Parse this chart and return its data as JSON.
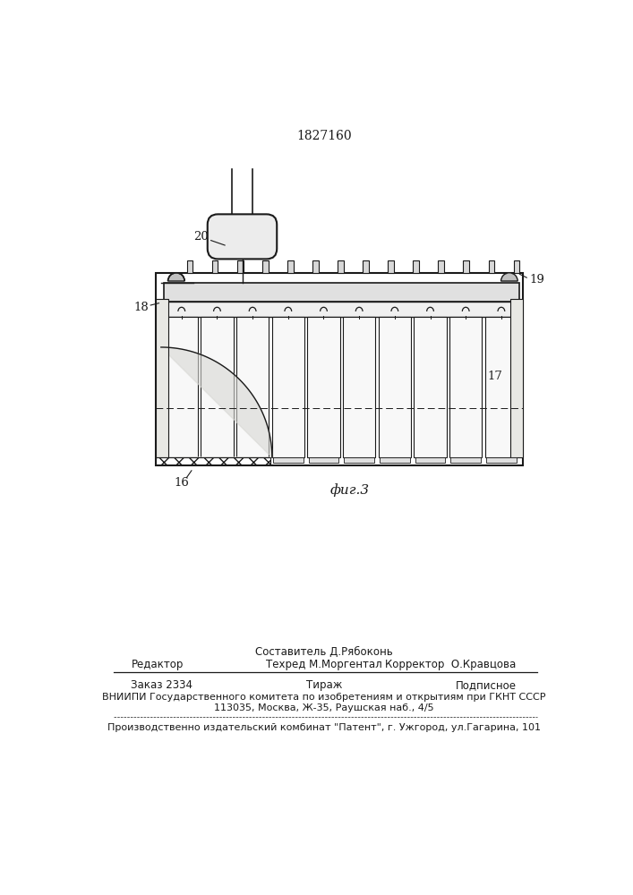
{
  "patent_number": "1827160",
  "figure_caption": "фиг.3",
  "bg_color": "#ffffff",
  "line_color": "#1a1a1a",
  "footer": {
    "sestavitel": "Составитель Д.Рябоконь",
    "redaktor": "Редактор",
    "tehred": "Техред М.Моргентал",
    "korrektor_label": "Корректор",
    "korrektor": "О.Кравцова",
    "zakaz": "Заказ 2334",
    "tirazh": "Тираж",
    "podpisnoe": "Подписное",
    "vniiipi1": "ВНИИПИ Государственного комитета по изобретениям и открытиям при ГКНТ СССР",
    "vniiipi2": "113035, Москва, Ж-35, Раушская наб., 4/5",
    "patent_line": "Производственно издательский комбинат \"Патент\", г. Ужгород, ул.Гагарина, 101"
  }
}
